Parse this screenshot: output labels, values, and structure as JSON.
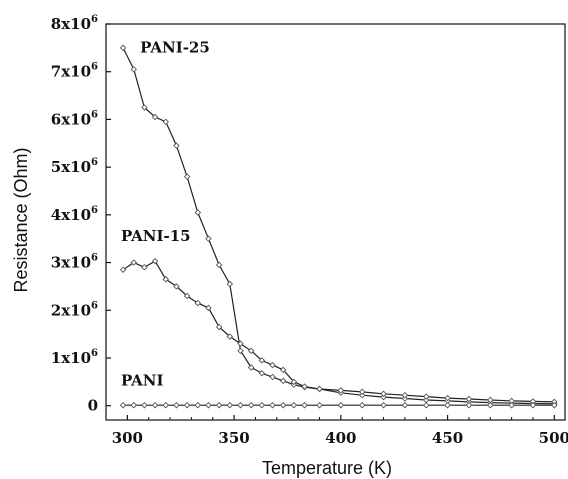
{
  "chart_data": {
    "type": "line",
    "xlabel": "Temperature (K)",
    "ylabel": "Resistance (Ohm)",
    "xlim": [
      290,
      505
    ],
    "ylim": [
      -300000,
      8000000
    ],
    "xticks": [
      300,
      350,
      400,
      450,
      500
    ],
    "xtick_labels": [
      "300",
      "350",
      "400",
      "450",
      "500"
    ],
    "yticks": [
      0,
      1000000,
      2000000,
      3000000,
      4000000,
      5000000,
      6000000,
      7000000,
      8000000
    ],
    "ytick_labels": [
      {
        "base": "0",
        "exp": ""
      },
      {
        "base": "1x10",
        "exp": "6"
      },
      {
        "base": "2x10",
        "exp": "6"
      },
      {
        "base": "3x10",
        "exp": "6"
      },
      {
        "base": "4x10",
        "exp": "6"
      },
      {
        "base": "5x10",
        "exp": "6"
      },
      {
        "base": "6x10",
        "exp": "6"
      },
      {
        "base": "7x10",
        "exp": "6"
      },
      {
        "base": "8x10",
        "exp": "6"
      }
    ],
    "grid": false,
    "series": [
      {
        "name": "PANI-25",
        "x": [
          298,
          303,
          308,
          313,
          318,
          323,
          328,
          333,
          338,
          343,
          348,
          353,
          358,
          363,
          368,
          373,
          378,
          383,
          390,
          400,
          410,
          420,
          430,
          440,
          450,
          460,
          470,
          480,
          490,
          500
        ],
        "y": [
          7500000,
          7050000,
          6250000,
          6050000,
          5950000,
          5450000,
          4800000,
          4050000,
          3500000,
          2950000,
          2550000,
          1150000,
          800000,
          680000,
          600000,
          520000,
          440000,
          390000,
          350000,
          270000,
          220000,
          180000,
          150000,
          120000,
          100000,
          80000,
          65000,
          55000,
          45000,
          40000
        ]
      },
      {
        "name": "PANI-15",
        "x": [
          298,
          303,
          308,
          313,
          318,
          323,
          328,
          333,
          338,
          343,
          348,
          353,
          358,
          363,
          368,
          373,
          378,
          383,
          390,
          400,
          410,
          420,
          430,
          440,
          450,
          460,
          470,
          480,
          490,
          500
        ],
        "y": [
          2850000,
          3000000,
          2900000,
          3030000,
          2650000,
          2500000,
          2300000,
          2150000,
          2050000,
          1650000,
          1450000,
          1300000,
          1150000,
          950000,
          850000,
          750000,
          500000,
          400000,
          350000,
          320000,
          290000,
          250000,
          220000,
          190000,
          160000,
          140000,
          120000,
          100000,
          90000,
          80000
        ]
      },
      {
        "name": "PANI",
        "x": [
          298,
          303,
          308,
          313,
          318,
          323,
          328,
          333,
          338,
          343,
          348,
          353,
          358,
          363,
          368,
          373,
          378,
          383,
          390,
          400,
          410,
          420,
          430,
          440,
          450,
          460,
          470,
          480,
          490,
          500
        ],
        "y": [
          10000,
          10000,
          10000,
          10000,
          10000,
          10000,
          10000,
          10000,
          10000,
          10000,
          10000,
          10000,
          10000,
          10000,
          10000,
          10000,
          10000,
          10000,
          10000,
          10000,
          10000,
          10000,
          10000,
          10000,
          10000,
          10000,
          10000,
          10000,
          10000,
          10000
        ]
      }
    ],
    "labels": [
      {
        "text": "PANI-25",
        "x": 306,
        "y": 7400000
      },
      {
        "text": "PANI-15",
        "x": 297,
        "y": 3450000
      },
      {
        "text": "PANI",
        "x": 297,
        "y": 420000
      }
    ],
    "colors": {
      "line": "#222222",
      "marker_stroke": "#555555",
      "marker_fill": "#ffffff"
    }
  }
}
